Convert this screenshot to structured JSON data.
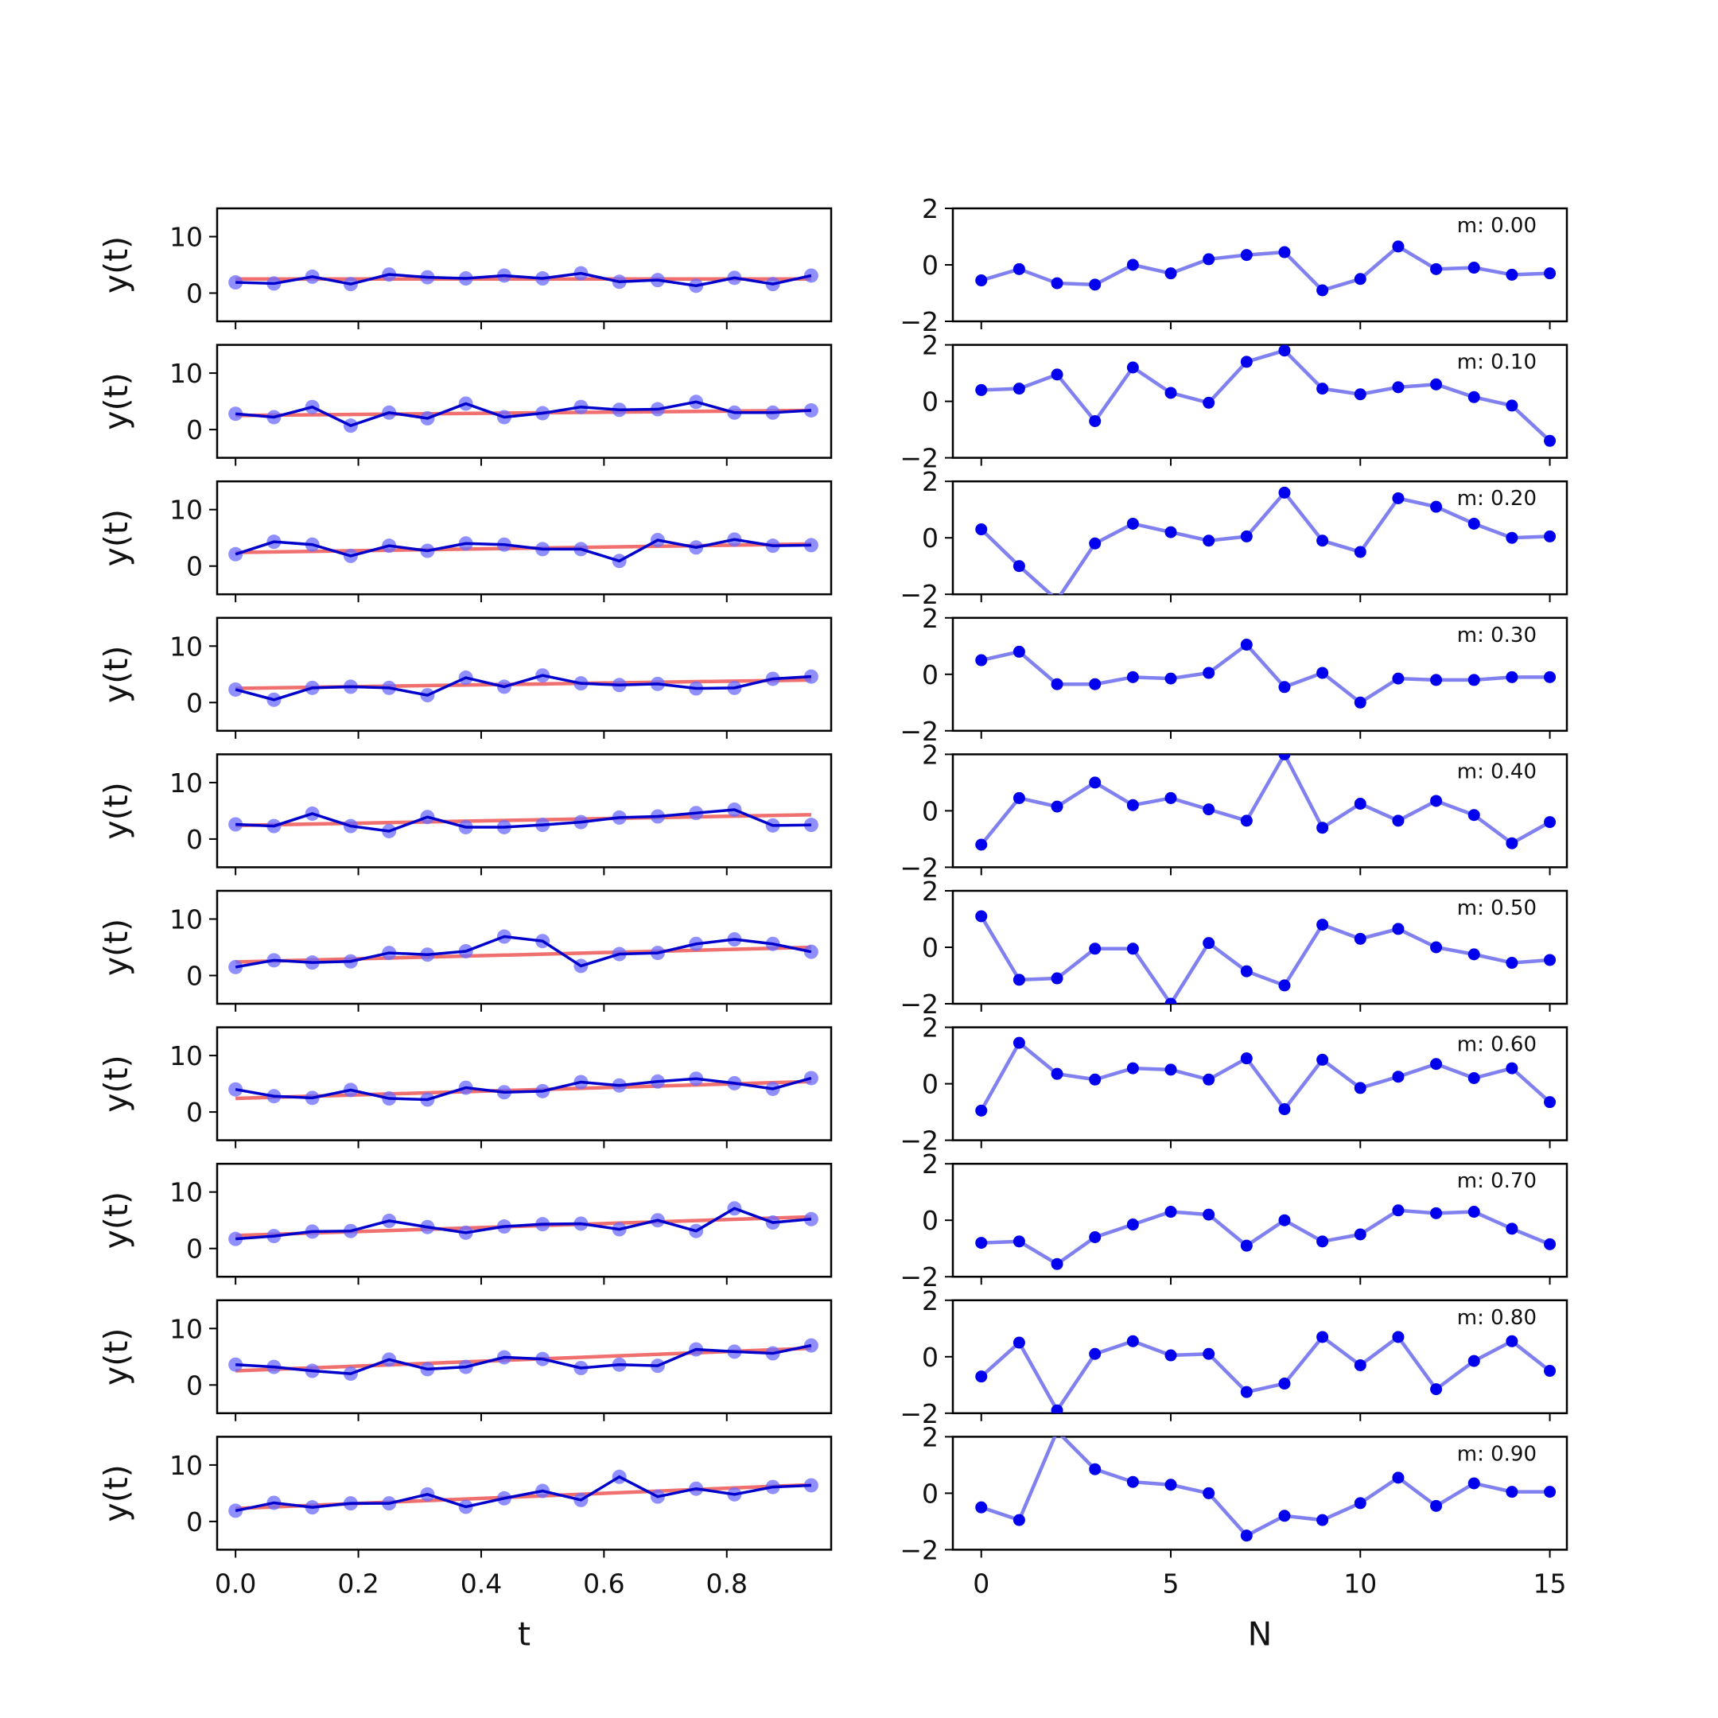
{
  "chart_data": {
    "type": "line",
    "layout": "10 rows x 2 columns of small-multiple line plots",
    "left_column": {
      "xlabel": "t",
      "ylabel": "y(t)",
      "x": [
        0.0,
        0.0625,
        0.125,
        0.1875,
        0.25,
        0.3125,
        0.375,
        0.4375,
        0.5,
        0.5625,
        0.625,
        0.6875,
        0.75,
        0.8125,
        0.875,
        0.9375
      ],
      "xlim": [
        -0.03,
        0.97
      ],
      "ylim": [
        -5,
        15
      ],
      "x_ticks": [
        0.0,
        0.2,
        0.4,
        0.6,
        0.8
      ],
      "x_tick_labels": [
        "0.0",
        "0.2",
        "0.4",
        "0.6",
        "0.8"
      ],
      "y_ticks": [
        0,
        10
      ],
      "y_tick_labels": [
        "0",
        "10"
      ],
      "series_colors": {
        "observed": "#0000cc",
        "points": "#6a6aff",
        "trend": "#f07070"
      }
    },
    "right_column": {
      "xlabel": "N",
      "ylabel": "",
      "x": [
        0,
        1,
        2,
        3,
        4,
        5,
        6,
        7,
        8,
        9,
        10,
        11,
        12,
        13,
        14,
        15
      ],
      "xlim": [
        -0.75,
        15.45
      ],
      "ylim": [
        -2,
        2
      ],
      "x_ticks": [
        0,
        5,
        10,
        15
      ],
      "x_tick_labels": [
        "0",
        "5",
        "10",
        "15"
      ],
      "y_ticks": [
        -2,
        0,
        2
      ],
      "y_tick_labels": [
        "−2",
        "0",
        "2"
      ],
      "series_color": "#0000ee",
      "line_color": "#8080f0"
    },
    "rows": [
      {
        "annotation": "m: 0.00",
        "trend": [
          2.5,
          2.5
        ],
        "y": [
          1.9,
          1.7,
          2.9,
          1.6,
          3.3,
          2.8,
          2.6,
          3.1,
          2.6,
          3.5,
          2.0,
          2.3,
          1.3,
          2.7,
          1.6,
          3.1
        ],
        "noise": [
          -0.55,
          -0.15,
          -0.65,
          -0.7,
          0.0,
          -0.3,
          0.2,
          0.35,
          0.45,
          -0.9,
          -0.5,
          0.65,
          -0.15,
          -0.1,
          -0.35,
          -0.3
        ]
      },
      {
        "annotation": "m: 0.10",
        "trend": [
          2.5,
          3.4
        ],
        "y": [
          2.8,
          2.2,
          4.0,
          0.7,
          3.0,
          2.0,
          4.6,
          2.2,
          2.9,
          4.0,
          3.5,
          3.6,
          4.9,
          3.0,
          3.0,
          3.4
        ],
        "noise": [
          0.4,
          0.45,
          0.95,
          -0.7,
          1.2,
          0.3,
          -0.05,
          1.4,
          1.8,
          0.45,
          0.25,
          0.5,
          0.6,
          0.15,
          -0.15,
          -1.4
        ]
      },
      {
        "annotation": "m: 0.20",
        "trend": [
          2.4,
          3.9
        ],
        "y": [
          2.1,
          4.3,
          3.8,
          1.8,
          3.6,
          2.7,
          4.0,
          3.8,
          3.0,
          3.0,
          0.9,
          4.6,
          3.3,
          4.7,
          3.6,
          3.7
        ],
        "noise": [
          0.3,
          -1.0,
          -2.2,
          -0.2,
          0.5,
          0.2,
          -0.1,
          0.05,
          1.6,
          -0.1,
          -0.5,
          1.4,
          1.1,
          0.5,
          0.0,
          0.05
        ]
      },
      {
        "annotation": "m: 0.30",
        "trend": [
          2.5,
          4.0
        ],
        "y": [
          2.3,
          0.5,
          2.6,
          2.8,
          2.6,
          1.3,
          4.4,
          2.8,
          4.8,
          3.4,
          3.1,
          3.3,
          2.5,
          2.6,
          4.2,
          4.6
        ],
        "noise": [
          0.5,
          0.8,
          -0.35,
          -0.35,
          -0.1,
          -0.15,
          0.05,
          1.05,
          -0.45,
          0.05,
          -1.0,
          -0.15,
          -0.2,
          -0.2,
          -0.1,
          -0.1
        ]
      },
      {
        "annotation": "m: 0.40",
        "trend": [
          2.4,
          4.3
        ],
        "y": [
          2.6,
          2.3,
          4.5,
          2.3,
          1.4,
          3.9,
          2.1,
          2.1,
          2.5,
          3.0,
          3.8,
          4.0,
          4.6,
          5.2,
          2.4,
          2.5
        ],
        "noise": [
          -1.2,
          0.45,
          0.15,
          1.0,
          0.2,
          0.45,
          0.05,
          -0.35,
          2.0,
          -0.6,
          0.25,
          -0.35,
          0.35,
          -0.15,
          -1.15,
          -0.4
        ]
      },
      {
        "annotation": "m: 0.50",
        "trend": [
          2.4,
          5.0
        ],
        "y": [
          1.5,
          2.7,
          2.3,
          2.5,
          4.0,
          3.7,
          4.3,
          6.9,
          6.1,
          1.7,
          3.8,
          4.0,
          5.6,
          6.4,
          5.6,
          4.2
        ],
        "noise": [
          1.1,
          -1.15,
          -1.1,
          -0.05,
          -0.05,
          -2.0,
          0.15,
          -0.85,
          -1.35,
          0.8,
          0.3,
          0.65,
          0.0,
          -0.25,
          -0.55,
          -0.45
        ]
      },
      {
        "annotation": "m: 0.60",
        "trend": [
          2.4,
          5.4
        ],
        "y": [
          4.0,
          2.8,
          2.5,
          3.9,
          2.4,
          2.2,
          4.3,
          3.5,
          3.7,
          5.3,
          4.7,
          5.4,
          5.9,
          5.1,
          4.1,
          6.0
        ],
        "noise": [
          -0.95,
          1.45,
          0.35,
          0.15,
          0.55,
          0.5,
          0.15,
          0.9,
          -0.9,
          0.85,
          -0.15,
          0.25,
          0.7,
          0.2,
          0.55,
          -0.65
        ]
      },
      {
        "annotation": "m: 0.70",
        "trend": [
          2.3,
          5.6
        ],
        "y": [
          1.7,
          2.2,
          3.0,
          3.1,
          4.9,
          3.8,
          2.8,
          3.9,
          4.3,
          4.4,
          3.4,
          5.0,
          3.1,
          7.1,
          4.6,
          5.2
        ],
        "noise": [
          -0.8,
          -0.75,
          -1.55,
          -0.6,
          -0.15,
          0.3,
          0.2,
          -0.9,
          0.0,
          -0.75,
          -0.5,
          0.35,
          0.25,
          0.3,
          -0.3,
          -0.85
        ]
      },
      {
        "annotation": "m: 0.80",
        "trend": [
          2.5,
          6.5
        ],
        "y": [
          3.6,
          3.2,
          2.5,
          2.0,
          4.5,
          2.8,
          3.2,
          4.9,
          4.6,
          3.0,
          3.6,
          3.4,
          6.3,
          5.9,
          5.6,
          7.0
        ],
        "noise": [
          -0.7,
          0.5,
          -1.9,
          0.1,
          0.55,
          0.05,
          0.1,
          -1.25,
          -0.95,
          0.7,
          -0.3,
          0.7,
          -1.15,
          -0.15,
          0.55,
          -0.5
        ]
      },
      {
        "annotation": "m: 0.90",
        "trend": [
          2.3,
          6.5
        ],
        "y": [
          1.9,
          3.3,
          2.5,
          3.2,
          3.2,
          4.8,
          2.6,
          4.1,
          5.4,
          3.8,
          7.9,
          4.4,
          5.8,
          4.8,
          6.1,
          6.4
        ],
        "noise": [
          -0.5,
          -0.95,
          2.2,
          0.85,
          0.4,
          0.3,
          0.0,
          -1.5,
          -0.8,
          -0.95,
          -0.35,
          0.55,
          -0.45,
          0.35,
          0.05,
          0.05
        ]
      }
    ]
  }
}
